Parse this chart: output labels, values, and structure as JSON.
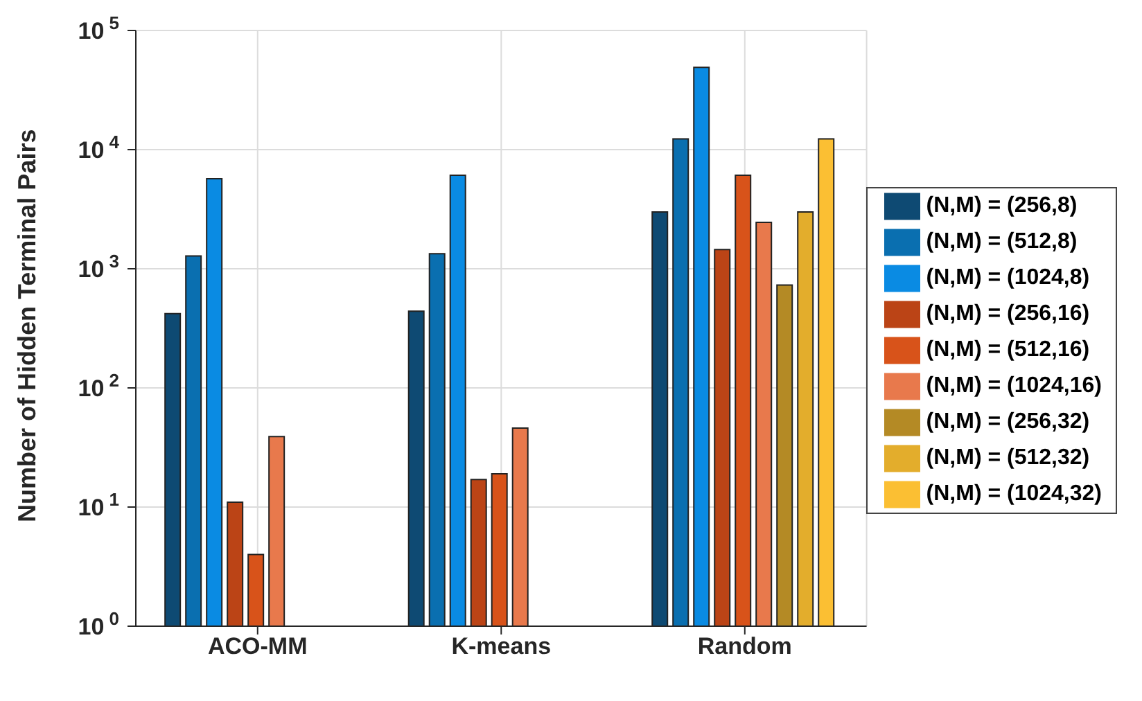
{
  "chart_data": {
    "type": "bar",
    "ylabel": "Number of Hidden Terminal Pairs",
    "categories": [
      "ACO-MM",
      "K-means",
      "Random"
    ],
    "log": true,
    "ylim": [
      1,
      100000
    ],
    "yticks": [
      {
        "value": 1,
        "label": "10$^{0}$"
      },
      {
        "value": 10,
        "label": "10$^{1}$"
      },
      {
        "value": 100,
        "label": "10$^{2}$"
      },
      {
        "value": 1000,
        "label": "10$^{3}$"
      },
      {
        "value": 10000,
        "label": "10$^{4}$"
      },
      {
        "value": 100000,
        "label": "10$^{5}$"
      }
    ],
    "grid": true,
    "legend": "right",
    "series": [
      {
        "name": "(N,M) = (256,8)",
        "color": "#0e4a73",
        "values": [
          420,
          440,
          3000
        ]
      },
      {
        "name": "(N,M) = (512,8)",
        "color": "#0a6fb0",
        "values": [
          1280,
          1340,
          12300
        ]
      },
      {
        "name": "(N,M) = (1024,8)",
        "color": "#0a8be3",
        "values": [
          5700,
          6100,
          49000
        ]
      },
      {
        "name": "(N,M) = (256,16)",
        "color": "#bb4416",
        "values": [
          11,
          17,
          1450
        ]
      },
      {
        "name": "(N,M) = (512,16)",
        "color": "#d8531a",
        "values": [
          4,
          19,
          6100
        ]
      },
      {
        "name": "(N,M) = (1024,16)",
        "color": "#e8794c",
        "values": [
          39,
          46,
          2450
        ]
      },
      {
        "name": "(N,M) = (256,32)",
        "color": "#b48a25",
        "values": [
          null,
          null,
          730
        ]
      },
      {
        "name": "(N,M) = (512,32)",
        "color": "#e3ad2c",
        "values": [
          null,
          null,
          3000
        ]
      },
      {
        "name": "(N,M) = (1024,32)",
        "color": "#fbbf33",
        "values": [
          null,
          null,
          12300
        ]
      }
    ]
  }
}
